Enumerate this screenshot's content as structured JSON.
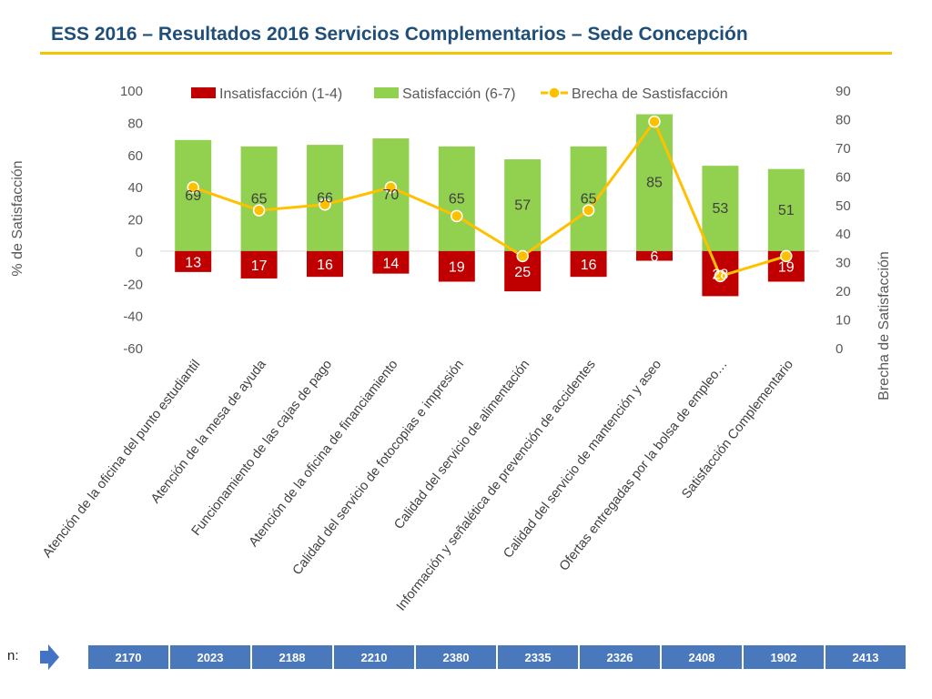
{
  "page": {
    "title": "ESS 2016 – Resultados 2016 Servicios Complementarios – Sede Concepción",
    "n_label": "n:"
  },
  "colors": {
    "insatisfaccion": "#c00000",
    "satisfaccion": "#92d050",
    "brecha": "#ffc000",
    "title": "#1f4e79",
    "title_rule": "#f5c400",
    "n_cells": "#4a78bd",
    "arrow": "#4472c4"
  },
  "chart_data": {
    "type": "bar",
    "title": "",
    "categories": [
      "Atención de la oficina del punto estudiantil",
      "Atención de la mesa de ayuda",
      "Funcionamiento de las cajas de pago",
      "Atención de la oficina de financiamiento",
      "Calidad del servicio de fotocopias e impresión",
      "Calidad del servicio de alimentación",
      "Información y señalética de prevención de accidentes",
      "Calidad del servicio de mantención y aseo",
      "Ofertas entregadas por la bolsa de empleo…",
      "Satisfacción Complementario"
    ],
    "series": [
      {
        "name": "Insatisfacción (1-4)",
        "type": "bar",
        "axis": "left",
        "values": [
          -13,
          -17,
          -16,
          -14,
          -19,
          -25,
          -16,
          -6,
          -28,
          -19
        ],
        "labels": [
          "13",
          "17",
          "16",
          "14",
          "19",
          "25",
          "16",
          "6",
          "28",
          "19"
        ]
      },
      {
        "name": "Satisfacción (6-7)",
        "type": "bar",
        "axis": "left",
        "values": [
          69,
          65,
          66,
          70,
          65,
          57,
          65,
          85,
          53,
          51
        ],
        "labels": [
          "69",
          "65",
          "66",
          "70",
          "65",
          "57",
          "65",
          "85",
          "53",
          "51"
        ]
      },
      {
        "name": "Brecha de Sastisfacción",
        "type": "line",
        "axis": "right",
        "values": [
          56,
          48,
          50,
          56,
          46,
          32,
          48,
          79,
          25,
          32
        ]
      }
    ],
    "ylabel": "% de Satisfacción",
    "ylim": [
      -60,
      100
    ],
    "yticks": [
      "100",
      "80",
      "60",
      "40",
      "20",
      "0",
      "-20",
      "-40",
      "-60"
    ],
    "y2label": "Brecha de Satisfacción",
    "y2lim": [
      0,
      90
    ],
    "y2ticks": [
      "90",
      "80",
      "70",
      "60",
      "50",
      "40",
      "30",
      "20",
      "10",
      "0"
    ],
    "legend_position": "top"
  },
  "n_values": [
    "2170",
    "2023",
    "2188",
    "2210",
    "2380",
    "2335",
    "2326",
    "2408",
    "1902",
    "2413"
  ]
}
